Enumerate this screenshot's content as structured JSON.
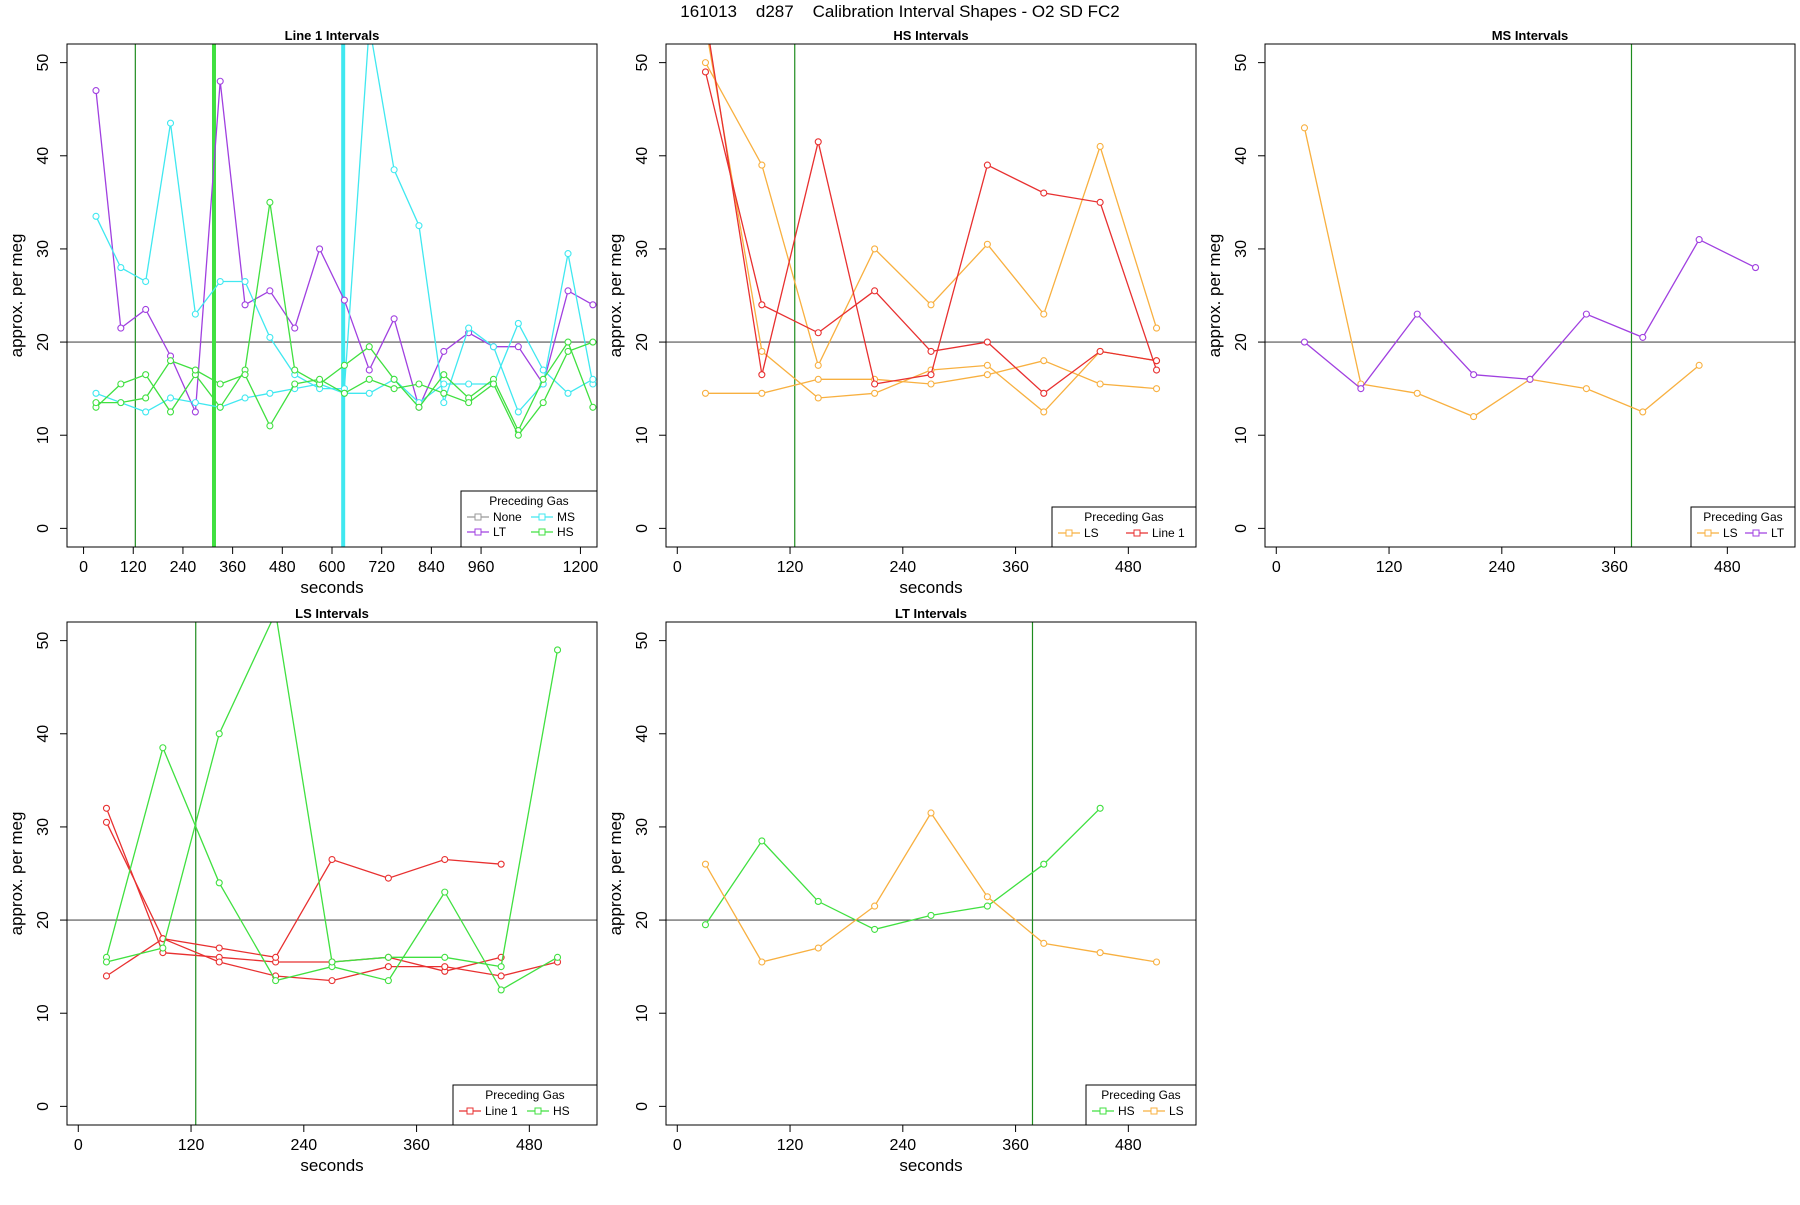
{
  "figure": {
    "title": "161013    d287    Calibration Interval Shapes - O2 SD FC2",
    "legend_title": "Preceding Gas",
    "colors": {
      "None": "#999999",
      "LT": "#a040e0",
      "MS": "#40e8f0",
      "HS": "#40e040",
      "LS": "#f8b040",
      "Line 1": "#e83030",
      "frame": "#000000",
      "refline": "#505050",
      "vline": "#1e8c1e"
    }
  },
  "chart_data": [
    {
      "type": "line",
      "title": "Line 1 Intervals",
      "xlabel": "seconds",
      "ylabel": "approx. per meg",
      "xlim": [
        -40,
        1240
      ],
      "ylim": [
        -2,
        52
      ],
      "xticks": [
        0,
        120,
        240,
        360,
        480,
        600,
        720,
        840,
        960,
        1200
      ],
      "xtick_labels": [
        "0",
        "120",
        "240",
        "360",
        "480",
        "600",
        "720",
        "840",
        "960",
        "1200"
      ],
      "yticks": [
        0,
        10,
        20,
        30,
        40,
        50
      ],
      "ytick_labels": [
        "0",
        "10",
        "20",
        "30",
        "40",
        "50"
      ],
      "hline": 20,
      "vlines": [
        {
          "x": 125,
          "color": "vline",
          "width": 1.2
        },
        {
          "x": 315,
          "color": "HS",
          "width": 4
        },
        {
          "x": 627,
          "color": "MS",
          "width": 4
        }
      ],
      "legend": {
        "position": "bottom-right",
        "ncol": 2,
        "entries": [
          "None",
          "MS",
          "LT",
          "HS"
        ]
      },
      "series": [
        {
          "name": "LT",
          "color": "LT",
          "x": [
            30,
            90,
            150,
            210,
            270,
            330,
            390,
            450,
            510,
            570,
            630,
            690,
            750,
            810,
            870,
            930,
            990,
            1050,
            1110,
            1170,
            1230
          ],
          "y": [
            47,
            21.5,
            23.5,
            18.5,
            12.5,
            48,
            24,
            25.5,
            21.5,
            30,
            24.5,
            17,
            22.5,
            13,
            19,
            21,
            19.5,
            19.5,
            15.5,
            25.5,
            24
          ]
        },
        {
          "name": "MS",
          "color": "MS",
          "x": [
            30,
            90,
            150,
            210,
            270,
            330,
            390,
            450,
            510,
            570,
            630,
            690,
            750,
            810,
            870,
            930,
            990,
            1050,
            1110,
            1170,
            1230
          ],
          "y": [
            33.5,
            28,
            26.5,
            43.5,
            23,
            26.5,
            26.5,
            20.5,
            16.5,
            15,
            15,
            54,
            38.5,
            32.5,
            13.5,
            21.5,
            19.5,
            12.5,
            15.5,
            29.5,
            15.5
          ]
        },
        {
          "name": "MS",
          "color": "MS",
          "x": [
            30,
            90,
            150,
            210,
            270,
            330,
            390,
            450,
            510,
            570,
            630,
            690,
            750,
            810,
            870,
            930,
            990,
            1050,
            1110,
            1170,
            1230
          ],
          "y": [
            14.5,
            13.5,
            12.5,
            14,
            13.5,
            13,
            14,
            14.5,
            15,
            15.5,
            14.5,
            14.5,
            16,
            13.5,
            15.5,
            15.5,
            15.5,
            22,
            17,
            14.5,
            16
          ]
        },
        {
          "name": "HS",
          "color": "HS",
          "x": [
            30,
            90,
            150,
            210,
            270,
            330,
            390,
            450,
            510,
            570,
            630,
            690,
            750,
            810,
            870,
            930,
            990,
            1050,
            1110,
            1170,
            1230
          ],
          "y": [
            13,
            15.5,
            16.5,
            12.5,
            16.5,
            13,
            17,
            35,
            17,
            15.5,
            17.5,
            19.5,
            16,
            13,
            16.5,
            14,
            16,
            10.5,
            16,
            20,
            13
          ]
        },
        {
          "name": "HS",
          "color": "HS",
          "x": [
            30,
            90,
            150,
            210,
            270,
            330,
            390,
            450,
            510,
            570,
            630,
            690,
            750,
            810,
            870,
            930,
            990,
            1050,
            1110,
            1170,
            1230
          ],
          "y": [
            13.5,
            13.5,
            14,
            18,
            17,
            15.5,
            16.5,
            11,
            15.5,
            16,
            14.5,
            16,
            15,
            15.5,
            14.5,
            13.5,
            15.5,
            10,
            13.5,
            19,
            20
          ]
        }
      ]
    },
    {
      "type": "line",
      "title": "HS Intervals",
      "xlabel": "seconds",
      "ylabel": "approx. per meg",
      "xlim": [
        -12,
        552
      ],
      "ylim": [
        -2,
        52
      ],
      "xticks": [
        0,
        120,
        240,
        360,
        480
      ],
      "xtick_labels": [
        "0",
        "120",
        "240",
        "360",
        "480"
      ],
      "yticks": [
        0,
        10,
        20,
        30,
        40,
        50
      ],
      "ytick_labels": [
        "0",
        "10",
        "20",
        "30",
        "40",
        "50"
      ],
      "hline": 20,
      "vlines": [
        {
          "x": 125,
          "color": "vline",
          "width": 1.2
        }
      ],
      "legend": {
        "position": "bottom-right",
        "ncol": 2,
        "entries": [
          "LS",
          "Line 1"
        ]
      },
      "series": [
        {
          "name": "LS",
          "color": "LS",
          "x": [
            30,
            90,
            150,
            210,
            270,
            330,
            390,
            450,
            510
          ],
          "y": [
            50,
            39,
            17.5,
            30,
            24,
            30.5,
            23,
            41,
            21.5
          ]
        },
        {
          "name": "LS",
          "color": "LS",
          "x": [
            30,
            90,
            150,
            210,
            270,
            330,
            390,
            450,
            510
          ],
          "y": [
            54,
            19,
            14,
            14.5,
            17,
            17.5,
            12.5,
            19,
            18
          ]
        },
        {
          "name": "LS",
          "color": "LS",
          "x": [
            30,
            90,
            150,
            210,
            270,
            330,
            390,
            450,
            510
          ],
          "y": [
            14.5,
            14.5,
            16,
            16,
            15.5,
            16.5,
            18,
            15.5,
            15
          ]
        },
        {
          "name": "Line 1",
          "color": "Line 1",
          "x": [
            30,
            90,
            150,
            210,
            270,
            330,
            390,
            450,
            510
          ],
          "y": [
            55,
            16.5,
            41.5,
            15.5,
            16.5,
            39,
            36,
            35,
            17
          ]
        },
        {
          "name": "Line 1",
          "color": "Line 1",
          "x": [
            30,
            90,
            150,
            210,
            270,
            330,
            390,
            450,
            510
          ],
          "y": [
            49,
            24,
            21,
            25.5,
            19,
            20,
            14.5,
            19,
            18
          ]
        }
      ]
    },
    {
      "type": "line",
      "title": "MS Intervals",
      "xlabel": "",
      "ylabel": "approx. per meg",
      "xlim": [
        -12,
        552
      ],
      "ylim": [
        -2,
        52
      ],
      "xticks": [
        0,
        120,
        240,
        360,
        480
      ],
      "xtick_labels": [
        "0",
        "120",
        "240",
        "360",
        "480"
      ],
      "yticks": [
        0,
        10,
        20,
        30,
        40,
        50
      ],
      "ytick_labels": [
        "0",
        "10",
        "20",
        "30",
        "40",
        "50"
      ],
      "hline": 20,
      "vlines": [
        {
          "x": 378,
          "color": "vline",
          "width": 1.2
        }
      ],
      "legend": {
        "position": "bottom-right",
        "ncol": 2,
        "entries": [
          "LS",
          "LT"
        ]
      },
      "series": [
        {
          "name": "LS",
          "color": "LS",
          "x": [
            30,
            90,
            150,
            210,
            270,
            330,
            390,
            450
          ],
          "y": [
            43,
            15.5,
            14.5,
            12,
            16,
            15,
            12.5,
            17.5
          ]
        },
        {
          "name": "LT",
          "color": "LT",
          "x": [
            30,
            90,
            150,
            210,
            270,
            330,
            390,
            450,
            510
          ],
          "y": [
            20,
            15,
            23,
            16.5,
            16,
            23,
            20.5,
            31,
            28
          ]
        }
      ]
    },
    {
      "type": "line",
      "title": "LS Intervals",
      "xlabel": "seconds",
      "ylabel": "approx. per meg",
      "xlim": [
        -12,
        552
      ],
      "ylim": [
        -2,
        52
      ],
      "xticks": [
        0,
        120,
        240,
        360,
        480
      ],
      "xtick_labels": [
        "0",
        "120",
        "240",
        "360",
        "480"
      ],
      "yticks": [
        0,
        10,
        20,
        30,
        40,
        50
      ],
      "ytick_labels": [
        "0",
        "10",
        "20",
        "30",
        "40",
        "50"
      ],
      "hline": 20,
      "vlines": [
        {
          "x": 125,
          "color": "vline",
          "width": 1.2
        }
      ],
      "legend": {
        "position": "bottom-right",
        "ncol": 2,
        "entries": [
          "Line 1",
          "HS"
        ]
      },
      "series": [
        {
          "name": "Line 1",
          "color": "Line 1",
          "x": [
            30,
            90,
            150,
            210,
            270,
            330,
            390,
            450
          ],
          "y": [
            32,
            16.5,
            16,
            15.5,
            15.5,
            16,
            14.5,
            16
          ]
        },
        {
          "name": "Line 1",
          "color": "Line 1",
          "x": [
            30,
            90,
            150,
            210,
            270,
            330,
            390,
            450
          ],
          "y": [
            30.5,
            18,
            17,
            16,
            26.5,
            24.5,
            26.5,
            26
          ]
        },
        {
          "name": "Line 1",
          "color": "Line 1",
          "x": [
            30,
            90,
            150,
            210,
            270,
            330,
            390,
            450,
            510
          ],
          "y": [
            14,
            18,
            15.5,
            14,
            13.5,
            15,
            15,
            14,
            15.5
          ]
        },
        {
          "name": "HS",
          "color": "HS",
          "x": [
            30,
            90,
            150,
            210,
            270,
            330,
            390,
            450,
            510
          ],
          "y": [
            16,
            38.5,
            24,
            13.5,
            15,
            13.5,
            23,
            12.5,
            16
          ]
        },
        {
          "name": "HS",
          "color": "HS",
          "x": [
            30,
            90,
            150,
            210,
            270,
            330,
            390,
            450,
            510
          ],
          "y": [
            15.5,
            17,
            40,
            53,
            15.5,
            16,
            16,
            15,
            49
          ]
        }
      ]
    },
    {
      "type": "line",
      "title": "LT Intervals",
      "xlabel": "seconds",
      "ylabel": "approx. per meg",
      "xlim": [
        -12,
        552
      ],
      "ylim": [
        -2,
        52
      ],
      "xticks": [
        0,
        120,
        240,
        360,
        480
      ],
      "xtick_labels": [
        "0",
        "120",
        "240",
        "360",
        "480"
      ],
      "yticks": [
        0,
        10,
        20,
        30,
        40,
        50
      ],
      "ytick_labels": [
        "0",
        "10",
        "20",
        "30",
        "40",
        "50"
      ],
      "hline": 20,
      "vlines": [
        {
          "x": 378,
          "color": "vline",
          "width": 1.2
        }
      ],
      "legend": {
        "position": "bottom-right",
        "ncol": 2,
        "entries": [
          "HS",
          "LS"
        ]
      },
      "series": [
        {
          "name": "HS",
          "color": "HS",
          "x": [
            30,
            90,
            150,
            210,
            270,
            330,
            390,
            450
          ],
          "y": [
            19.5,
            28.5,
            22,
            19,
            20.5,
            21.5,
            26,
            32
          ]
        },
        {
          "name": "LS",
          "color": "LS",
          "x": [
            30,
            90,
            150,
            210,
            270,
            330,
            390,
            450,
            510
          ],
          "y": [
            26,
            15.5,
            17,
            21.5,
            31.5,
            22.5,
            17.5,
            16.5,
            15.5
          ]
        }
      ]
    }
  ]
}
